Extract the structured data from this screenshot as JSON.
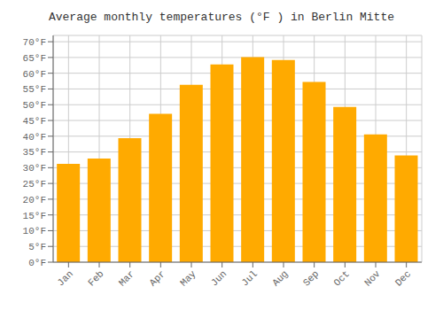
{
  "chart_data": {
    "type": "bar",
    "title": "Average monthly temperatures (°F ) in Berlin Mitte",
    "categories": [
      "Jan",
      "Feb",
      "Mar",
      "Apr",
      "May",
      "Jun",
      "Jul",
      "Aug",
      "Sep",
      "Oct",
      "Nov",
      "Dec"
    ],
    "values": [
      31.2,
      32.9,
      39.4,
      47.1,
      56.3,
      62.8,
      65.1,
      64.2,
      57.2,
      49.3,
      40.6,
      33.9
    ],
    "color": "#FFAA00",
    "ylim": [
      0,
      72
    ],
    "yticks": [
      {
        "value": 0,
        "label": "0°F"
      },
      {
        "value": 5,
        "label": "5°F"
      },
      {
        "value": 10,
        "label": "10°F"
      },
      {
        "value": 15,
        "label": "15°F"
      },
      {
        "value": 20,
        "label": "20°F"
      },
      {
        "value": 25,
        "label": "25°F"
      },
      {
        "value": 30,
        "label": "30°F"
      },
      {
        "value": 35,
        "label": "35°F"
      },
      {
        "value": 40,
        "label": "40°F"
      },
      {
        "value": 45,
        "label": "45°F"
      },
      {
        "value": 50,
        "label": "50°F"
      },
      {
        "value": 55,
        "label": "55°F"
      },
      {
        "value": 60,
        "label": "60°F"
      },
      {
        "value": 65,
        "label": "65°F"
      },
      {
        "value": 70,
        "label": "70°F"
      }
    ],
    "grid": true
  }
}
